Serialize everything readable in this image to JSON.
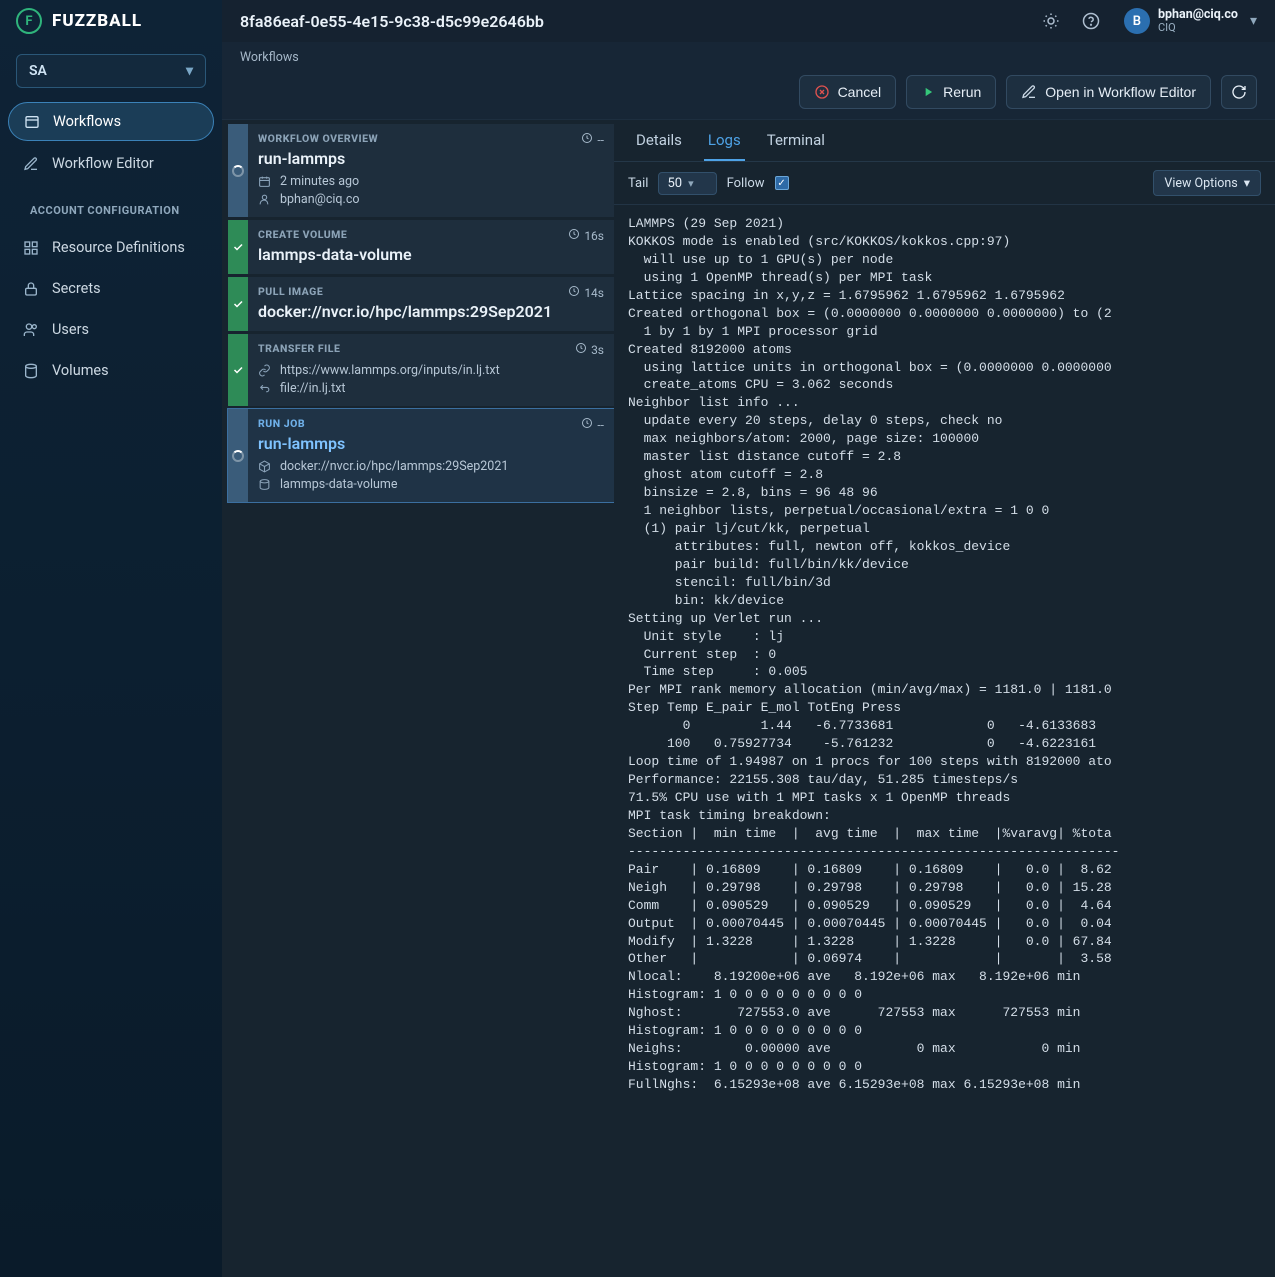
{
  "brand": {
    "mark": "F",
    "text": "FUZZBALL"
  },
  "org_selector": {
    "value": "SA"
  },
  "nav": {
    "items": [
      {
        "label": "Workflows"
      },
      {
        "label": "Workflow Editor"
      }
    ],
    "section_label": "ACCOUNT CONFIGURATION",
    "config_items": [
      {
        "label": "Resource Definitions"
      },
      {
        "label": "Secrets"
      },
      {
        "label": "Users"
      },
      {
        "label": "Volumes"
      }
    ]
  },
  "topbar": {
    "workflow_id": "8fa86eaf-0e55-4e15-9c38-d5c99e2646bb",
    "user": {
      "initial": "B",
      "email": "bphan@ciq.co",
      "org": "CIQ"
    }
  },
  "breadcrumb": "Workflows",
  "actions": {
    "cancel": "Cancel",
    "rerun": "Rerun",
    "open_editor": "Open in Workflow Editor"
  },
  "steps": [
    {
      "status": "running",
      "kind": "WORKFLOW OVERVIEW",
      "title": "run-lammps",
      "duration": "--",
      "meta": [
        {
          "icon": "calendar",
          "text": "2 minutes ago"
        },
        {
          "icon": "user",
          "text": "bphan@ciq.co"
        }
      ]
    },
    {
      "status": "done",
      "kind": "CREATE VOLUME",
      "title": "lammps-data-volume",
      "duration": "16s",
      "meta": []
    },
    {
      "status": "done",
      "kind": "PULL IMAGE",
      "title": "docker://nvcr.io/hpc/lammps:29Sep2021",
      "duration": "14s",
      "meta": []
    },
    {
      "status": "done",
      "kind": "TRANSFER FILE",
      "title": "",
      "duration": "3s",
      "meta": [
        {
          "icon": "link",
          "text": "https://www.lammps.org/inputs/in.lj.txt"
        },
        {
          "icon": "return",
          "text": "file://in.lj.txt"
        }
      ]
    },
    {
      "status": "running",
      "selected": true,
      "kind": "RUN JOB",
      "title": "run-lammps",
      "duration": "--",
      "meta": [
        {
          "icon": "cube",
          "text": "docker://nvcr.io/hpc/lammps:29Sep2021"
        },
        {
          "icon": "disk",
          "text": "lammps-data-volume"
        }
      ]
    }
  ],
  "tabs": {
    "details": "Details",
    "logs": "Logs",
    "terminal": "Terminal"
  },
  "log_toolbar": {
    "tail_label": "Tail",
    "tail_value": "50",
    "follow_label": "Follow",
    "follow_checked": true,
    "view_options": "View Options"
  },
  "log_text": "LAMMPS (29 Sep 2021)\nKOKKOS mode is enabled (src/KOKKOS/kokkos.cpp:97)\n  will use up to 1 GPU(s) per node\n  using 1 OpenMP thread(s) per MPI task\nLattice spacing in x,y,z = 1.6795962 1.6795962 1.6795962\nCreated orthogonal box = (0.0000000 0.0000000 0.0000000) to (2\n  1 by 1 by 1 MPI processor grid\nCreated 8192000 atoms\n  using lattice units in orthogonal box = (0.0000000 0.0000000\n  create_atoms CPU = 3.062 seconds\nNeighbor list info ...\n  update every 20 steps, delay 0 steps, check no\n  max neighbors/atom: 2000, page size: 100000\n  master list distance cutoff = 2.8\n  ghost atom cutoff = 2.8\n  binsize = 2.8, bins = 96 48 96\n  1 neighbor lists, perpetual/occasional/extra = 1 0 0\n  (1) pair lj/cut/kk, perpetual\n      attributes: full, newton off, kokkos_device\n      pair build: full/bin/kk/device\n      stencil: full/bin/3d\n      bin: kk/device\nSetting up Verlet run ...\n  Unit style    : lj\n  Current step  : 0\n  Time step     : 0.005\nPer MPI rank memory allocation (min/avg/max) = 1181.0 | 1181.0\nStep Temp E_pair E_mol TotEng Press\n       0         1.44   -6.7733681            0   -4.6133683\n     100   0.75927734    -5.761232            0   -4.6223161\nLoop time of 1.94987 on 1 procs for 100 steps with 8192000 ato\nPerformance: 22155.308 tau/day, 51.285 timesteps/s\n71.5% CPU use with 1 MPI tasks x 1 OpenMP threads\nMPI task timing breakdown:\nSection |  min time  |  avg time  |  max time  |%varavg| %tota\n---------------------------------------------------------------\nPair    | 0.16809    | 0.16809    | 0.16809    |   0.0 |  8.62\nNeigh   | 0.29798    | 0.29798    | 0.29798    |   0.0 | 15.28\nComm    | 0.090529   | 0.090529   | 0.090529   |   0.0 |  4.64\nOutput  | 0.00070445 | 0.00070445 | 0.00070445 |   0.0 |  0.04\nModify  | 1.3228     | 1.3228     | 1.3228     |   0.0 | 67.84\nOther   |            | 0.06974    |            |       |  3.58\nNlocal:    8.19200e+06 ave   8.192e+06 max   8.192e+06 min\nHistogram: 1 0 0 0 0 0 0 0 0 0\nNghost:       727553.0 ave      727553 max      727553 min\nHistogram: 1 0 0 0 0 0 0 0 0 0\nNeighs:        0.00000 ave           0 max           0 min\nHistogram: 1 0 0 0 0 0 0 0 0 0\nFullNghs:  6.15293e+08 ave 6.15293e+08 max 6.15293e+08 min"
}
